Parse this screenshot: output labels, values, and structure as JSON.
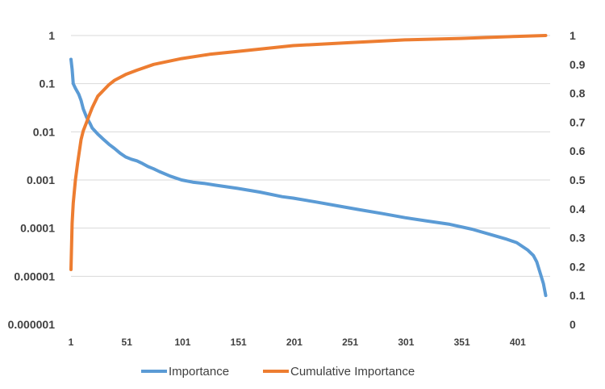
{
  "chart_data": {
    "type": "line",
    "title": "",
    "xlabel": "",
    "ylabel": "",
    "y2label": "",
    "x_range": [
      1,
      430
    ],
    "x_ticks": [
      "1",
      "51",
      "101",
      "151",
      "201",
      "251",
      "301",
      "351",
      "401"
    ],
    "y_scale": "log",
    "ylim": [
      1e-06,
      1
    ],
    "y_ticks": [
      "1",
      "0.1",
      "0.01",
      "0.001",
      "0.0001",
      "0.00001",
      "0.000001"
    ],
    "y2_scale": "linear",
    "y2lim": [
      0,
      1
    ],
    "y2_ticks": [
      "1",
      "0.9",
      "0.8",
      "0.7",
      "0.6",
      "0.5",
      "0.4",
      "0.3",
      "0.2",
      "0.1",
      "0"
    ],
    "grid": "horizontal",
    "legend_position": "bottom",
    "series": [
      {
        "name": "Importance",
        "axis": "left",
        "color": "#5b9bd5",
        "x": [
          1,
          2,
          3,
          5,
          8,
          10,
          12,
          15,
          18,
          20,
          25,
          30,
          35,
          40,
          45,
          50,
          55,
          60,
          65,
          70,
          75,
          80,
          90,
          100,
          110,
          120,
          130,
          150,
          170,
          190,
          200,
          220,
          240,
          260,
          280,
          300,
          320,
          340,
          360,
          380,
          390,
          400,
          410,
          415,
          418,
          420,
          422,
          424,
          426
        ],
        "y": [
          0.32,
          0.2,
          0.1,
          0.08,
          0.06,
          0.045,
          0.03,
          0.02,
          0.015,
          0.012,
          0.009,
          0.007,
          0.0055,
          0.0045,
          0.0036,
          0.003,
          0.0027,
          0.0025,
          0.0022,
          0.0019,
          0.0017,
          0.0015,
          0.0012,
          0.001,
          0.0009,
          0.00085,
          0.00078,
          0.00067,
          0.00056,
          0.00045,
          0.00042,
          0.00035,
          0.00029,
          0.00024,
          0.0002,
          0.000165,
          0.00014,
          0.00012,
          9.5e-05,
          7e-05,
          6e-05,
          5e-05,
          3.5e-05,
          2.7e-05,
          2e-05,
          1.4e-05,
          1e-05,
          7e-06,
          4e-06
        ]
      },
      {
        "name": "Cumulative Importance",
        "axis": "right",
        "color": "#ed7d31",
        "x": [
          1,
          2,
          3,
          5,
          7,
          10,
          12,
          15,
          18,
          20,
          25,
          30,
          35,
          40,
          50,
          60,
          75,
          100,
          125,
          150,
          175,
          200,
          250,
          300,
          350,
          400,
          426
        ],
        "y": [
          0.19,
          0.35,
          0.42,
          0.5,
          0.56,
          0.64,
          0.67,
          0.7,
          0.73,
          0.75,
          0.79,
          0.81,
          0.83,
          0.845,
          0.865,
          0.88,
          0.9,
          0.92,
          0.935,
          0.945,
          0.955,
          0.965,
          0.975,
          0.985,
          0.99,
          0.997,
          1.0
        ]
      }
    ]
  }
}
